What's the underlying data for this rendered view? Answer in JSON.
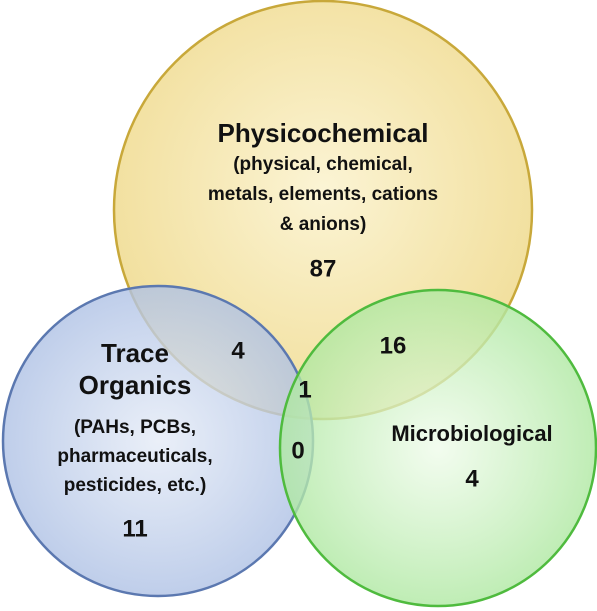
{
  "sets": [
    {
      "label": "Physicochemical",
      "description": [
        "(physical, chemical,",
        "metals, elements, cations",
        "& anions)"
      ],
      "count": "87"
    },
    {
      "label": [
        "Trace",
        "Organics"
      ],
      "description": [
        "(PAHs, PCBs,",
        "pharmaceuticals,",
        "pesticides, etc.)"
      ],
      "count": "11"
    },
    {
      "label": "Microbiological",
      "count": "4"
    }
  ],
  "intersections": {
    "physicochemical_trace": "4",
    "physicochemical_microbiological": "16",
    "all_three": "1",
    "trace_microbiological": "0"
  }
}
